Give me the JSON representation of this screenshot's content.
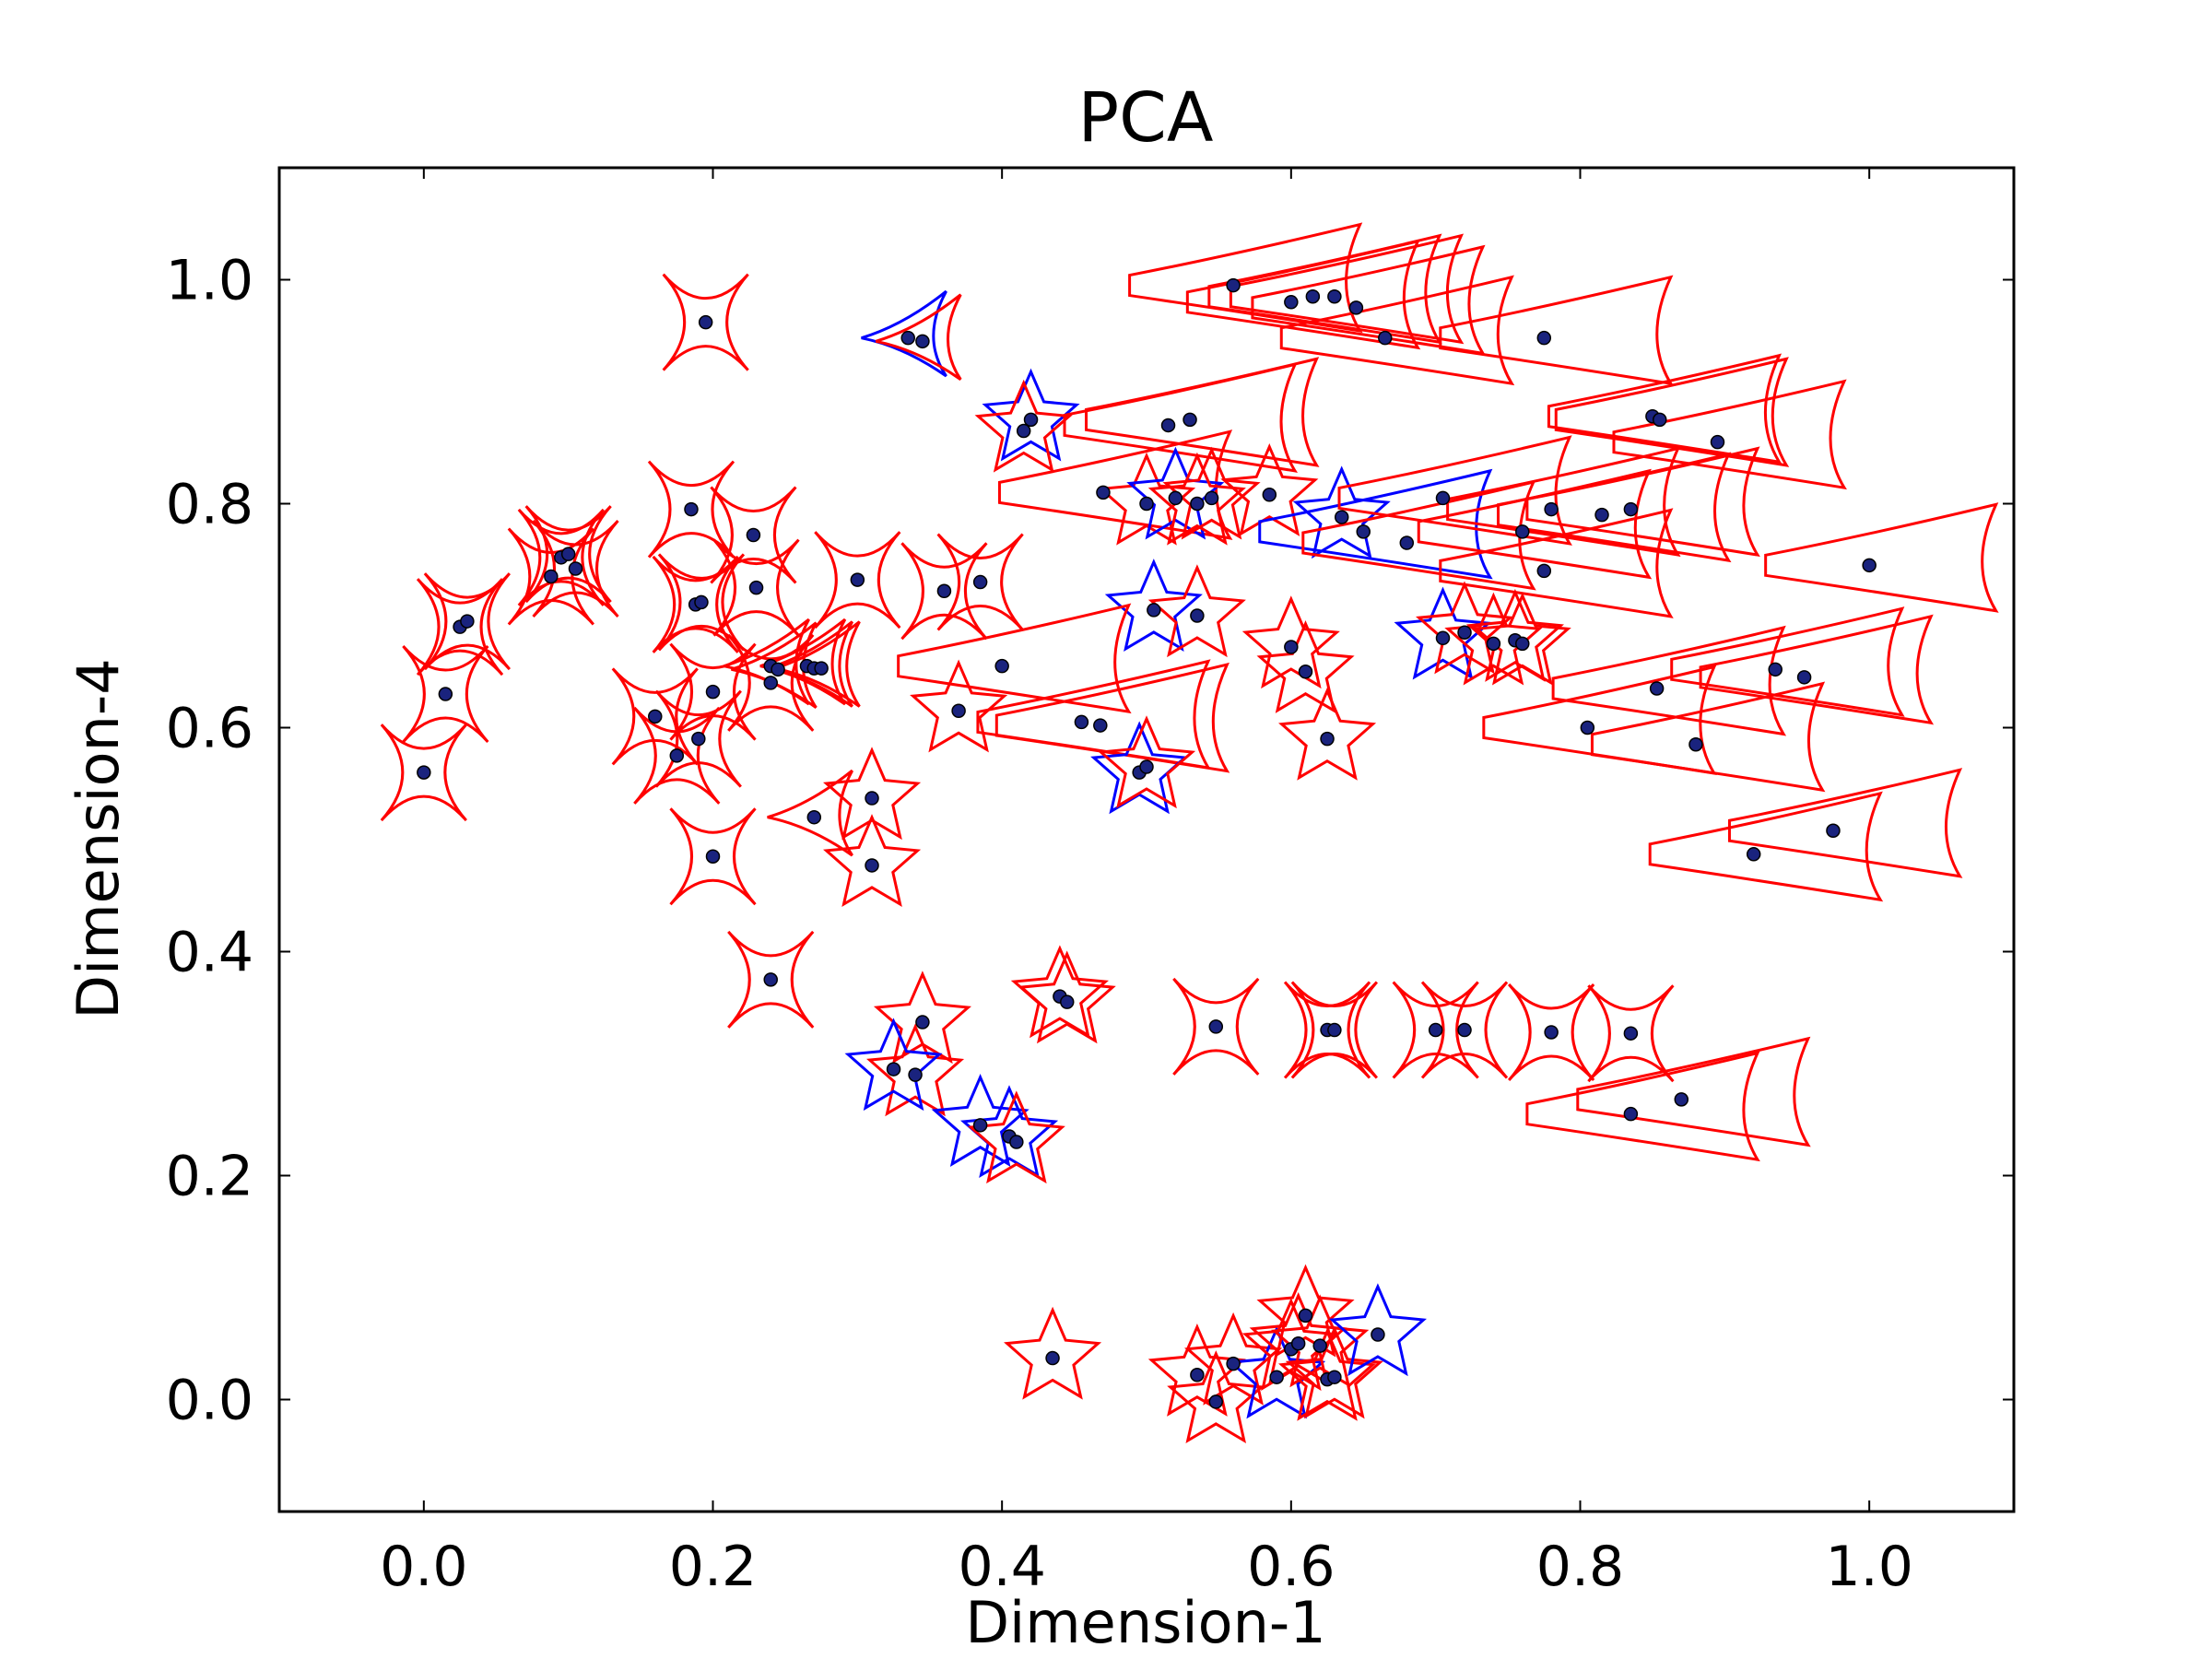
{
  "chart_data": {
    "type": "scatter",
    "title": "PCA",
    "xlabel": "Dimension-1",
    "ylabel": "Dimension-4",
    "xlim": [
      -0.1,
      1.1
    ],
    "ylim": [
      -0.1,
      1.1
    ],
    "xticks": [
      "0.0",
      "0.2",
      "0.4",
      "0.6",
      "0.8",
      "1.0"
    ],
    "yticks": [
      "0.0",
      "0.2",
      "0.4",
      "0.6",
      "0.8",
      "1.0"
    ],
    "grid": false,
    "legend": "none",
    "colors": {
      "point": "#1a237e",
      "glyph_red": "#ff0000",
      "glyph_blue": "#0000ff",
      "axis": "#000000"
    },
    "points": [
      {
        "x": 0.195,
        "y": 0.962,
        "shape": "astroid",
        "color": "red"
      },
      {
        "x": 0.335,
        "y": 0.948,
        "shape": "triangle",
        "color": "blue"
      },
      {
        "x": 0.345,
        "y": 0.945,
        "shape": "triangle",
        "color": "red"
      },
      {
        "x": 0.56,
        "y": 0.995,
        "shape": "wedge",
        "color": "red"
      },
      {
        "x": 0.6,
        "y": 0.98,
        "shape": "wedge",
        "color": "red"
      },
      {
        "x": 0.615,
        "y": 0.985,
        "shape": "wedge",
        "color": "red"
      },
      {
        "x": 0.63,
        "y": 0.985,
        "shape": "wedge",
        "color": "red"
      },
      {
        "x": 0.645,
        "y": 0.975,
        "shape": "wedge",
        "color": "red"
      },
      {
        "x": 0.665,
        "y": 0.948,
        "shape": "wedge",
        "color": "red"
      },
      {
        "x": 0.775,
        "y": 0.948,
        "shape": "wedge",
        "color": "red"
      },
      {
        "x": 0.85,
        "y": 0.878,
        "shape": "wedge",
        "color": "red"
      },
      {
        "x": 0.855,
        "y": 0.875,
        "shape": "wedge",
        "color": "red"
      },
      {
        "x": 0.895,
        "y": 0.855,
        "shape": "wedge",
        "color": "red"
      },
      {
        "x": 0.42,
        "y": 0.875,
        "shape": "star",
        "color": "blue"
      },
      {
        "x": 0.415,
        "y": 0.865,
        "shape": "star",
        "color": "red"
      },
      {
        "x": 0.515,
        "y": 0.87,
        "shape": "wedge",
        "color": "red"
      },
      {
        "x": 0.53,
        "y": 0.875,
        "shape": "wedge",
        "color": "red"
      },
      {
        "x": 0.185,
        "y": 0.795,
        "shape": "astroid",
        "color": "red"
      },
      {
        "x": 0.228,
        "y": 0.772,
        "shape": "astroid",
        "color": "red"
      },
      {
        "x": 0.095,
        "y": 0.752,
        "shape": "astroid",
        "color": "red"
      },
      {
        "x": 0.1,
        "y": 0.755,
        "shape": "astroid",
        "color": "red"
      },
      {
        "x": 0.105,
        "y": 0.742,
        "shape": "astroid",
        "color": "red"
      },
      {
        "x": 0.088,
        "y": 0.735,
        "shape": "astroid",
        "color": "red"
      },
      {
        "x": 0.23,
        "y": 0.725,
        "shape": "astroid",
        "color": "red"
      },
      {
        "x": 0.3,
        "y": 0.732,
        "shape": "astroid",
        "color": "red"
      },
      {
        "x": 0.36,
        "y": 0.722,
        "shape": "astroid",
        "color": "red"
      },
      {
        "x": 0.385,
        "y": 0.73,
        "shape": "astroid",
        "color": "red"
      },
      {
        "x": 0.188,
        "y": 0.71,
        "shape": "astroid",
        "color": "red"
      },
      {
        "x": 0.192,
        "y": 0.712,
        "shape": "astroid",
        "color": "red"
      },
      {
        "x": 0.025,
        "y": 0.69,
        "shape": "astroid",
        "color": "red"
      },
      {
        "x": 0.03,
        "y": 0.695,
        "shape": "astroid",
        "color": "red"
      },
      {
        "x": 0.015,
        "y": 0.63,
        "shape": "astroid",
        "color": "red"
      },
      {
        "x": 0.0,
        "y": 0.56,
        "shape": "astroid",
        "color": "red"
      },
      {
        "x": 0.47,
        "y": 0.81,
        "shape": "wedge",
        "color": "red"
      },
      {
        "x": 0.5,
        "y": 0.8,
        "shape": "star",
        "color": "red"
      },
      {
        "x": 0.52,
        "y": 0.805,
        "shape": "star",
        "color": "blue"
      },
      {
        "x": 0.535,
        "y": 0.8,
        "shape": "star",
        "color": "red"
      },
      {
        "x": 0.545,
        "y": 0.805,
        "shape": "star",
        "color": "red"
      },
      {
        "x": 0.585,
        "y": 0.808,
        "shape": "star",
        "color": "red"
      },
      {
        "x": 0.635,
        "y": 0.788,
        "shape": "star",
        "color": "blue"
      },
      {
        "x": 0.65,
        "y": 0.775,
        "shape": "wedge",
        "color": "blue"
      },
      {
        "x": 0.68,
        "y": 0.765,
        "shape": "wedge",
        "color": "red"
      },
      {
        "x": 0.705,
        "y": 0.805,
        "shape": "wedge",
        "color": "red"
      },
      {
        "x": 0.76,
        "y": 0.775,
        "shape": "wedge",
        "color": "red"
      },
      {
        "x": 0.78,
        "y": 0.795,
        "shape": "wedge",
        "color": "red"
      },
      {
        "x": 0.815,
        "y": 0.79,
        "shape": "wedge",
        "color": "red"
      },
      {
        "x": 0.835,
        "y": 0.795,
        "shape": "wedge",
        "color": "red"
      },
      {
        "x": 0.775,
        "y": 0.74,
        "shape": "wedge",
        "color": "red"
      },
      {
        "x": 1.0,
        "y": 0.745,
        "shape": "wedge",
        "color": "red"
      },
      {
        "x": 0.505,
        "y": 0.705,
        "shape": "star",
        "color": "blue"
      },
      {
        "x": 0.535,
        "y": 0.7,
        "shape": "star",
        "color": "red"
      },
      {
        "x": 0.6,
        "y": 0.672,
        "shape": "star",
        "color": "red"
      },
      {
        "x": 0.61,
        "y": 0.65,
        "shape": "star",
        "color": "red"
      },
      {
        "x": 0.625,
        "y": 0.59,
        "shape": "star",
        "color": "red"
      },
      {
        "x": 0.705,
        "y": 0.68,
        "shape": "star",
        "color": "blue"
      },
      {
        "x": 0.72,
        "y": 0.685,
        "shape": "star",
        "color": "red"
      },
      {
        "x": 0.74,
        "y": 0.675,
        "shape": "star",
        "color": "red"
      },
      {
        "x": 0.755,
        "y": 0.678,
        "shape": "star",
        "color": "red"
      },
      {
        "x": 0.76,
        "y": 0.675,
        "shape": "star",
        "color": "red"
      },
      {
        "x": 0.853,
        "y": 0.635,
        "shape": "wedge",
        "color": "red"
      },
      {
        "x": 0.935,
        "y": 0.652,
        "shape": "wedge",
        "color": "red"
      },
      {
        "x": 0.955,
        "y": 0.645,
        "shape": "wedge",
        "color": "red"
      },
      {
        "x": 0.805,
        "y": 0.6,
        "shape": "wedge",
        "color": "red"
      },
      {
        "x": 0.88,
        "y": 0.585,
        "shape": "wedge",
        "color": "red"
      },
      {
        "x": 0.975,
        "y": 0.508,
        "shape": "wedge",
        "color": "red"
      },
      {
        "x": 0.92,
        "y": 0.487,
        "shape": "wedge",
        "color": "red"
      },
      {
        "x": 0.24,
        "y": 0.655,
        "shape": "triangle",
        "color": "red"
      },
      {
        "x": 0.245,
        "y": 0.652,
        "shape": "triangle",
        "color": "red"
      },
      {
        "x": 0.265,
        "y": 0.655,
        "shape": "triangle",
        "color": "red"
      },
      {
        "x": 0.27,
        "y": 0.653,
        "shape": "triangle",
        "color": "red"
      },
      {
        "x": 0.275,
        "y": 0.653,
        "shape": "triangle",
        "color": "red"
      },
      {
        "x": 0.24,
        "y": 0.64,
        "shape": "astroid",
        "color": "red"
      },
      {
        "x": 0.2,
        "y": 0.632,
        "shape": "astroid",
        "color": "red"
      },
      {
        "x": 0.16,
        "y": 0.61,
        "shape": "astroid",
        "color": "red"
      },
      {
        "x": 0.19,
        "y": 0.59,
        "shape": "astroid",
        "color": "red"
      },
      {
        "x": 0.175,
        "y": 0.575,
        "shape": "astroid",
        "color": "red"
      },
      {
        "x": 0.37,
        "y": 0.615,
        "shape": "star",
        "color": "red"
      },
      {
        "x": 0.4,
        "y": 0.655,
        "shape": "wedge",
        "color": "red"
      },
      {
        "x": 0.455,
        "y": 0.605,
        "shape": "wedge",
        "color": "red"
      },
      {
        "x": 0.468,
        "y": 0.602,
        "shape": "wedge",
        "color": "red"
      },
      {
        "x": 0.495,
        "y": 0.56,
        "shape": "star",
        "color": "blue"
      },
      {
        "x": 0.5,
        "y": 0.565,
        "shape": "star",
        "color": "red"
      },
      {
        "x": 0.27,
        "y": 0.52,
        "shape": "triangle",
        "color": "red"
      },
      {
        "x": 0.31,
        "y": 0.537,
        "shape": "star",
        "color": "red"
      },
      {
        "x": 0.31,
        "y": 0.477,
        "shape": "star",
        "color": "red"
      },
      {
        "x": 0.2,
        "y": 0.485,
        "shape": "astroid",
        "color": "red"
      },
      {
        "x": 0.24,
        "y": 0.375,
        "shape": "astroid",
        "color": "red"
      },
      {
        "x": 0.345,
        "y": 0.337,
        "shape": "star",
        "color": "red"
      },
      {
        "x": 0.34,
        "y": 0.29,
        "shape": "star",
        "color": "red"
      },
      {
        "x": 0.325,
        "y": 0.295,
        "shape": "star",
        "color": "blue"
      },
      {
        "x": 0.44,
        "y": 0.36,
        "shape": "star",
        "color": "red"
      },
      {
        "x": 0.445,
        "y": 0.355,
        "shape": "star",
        "color": "red"
      },
      {
        "x": 0.385,
        "y": 0.245,
        "shape": "star",
        "color": "blue"
      },
      {
        "x": 0.405,
        "y": 0.235,
        "shape": "star",
        "color": "blue"
      },
      {
        "x": 0.41,
        "y": 0.23,
        "shape": "star",
        "color": "red"
      },
      {
        "x": 0.548,
        "y": 0.333,
        "shape": "astroid",
        "color": "red"
      },
      {
        "x": 0.625,
        "y": 0.33,
        "shape": "astroid",
        "color": "red"
      },
      {
        "x": 0.63,
        "y": 0.33,
        "shape": "astroid",
        "color": "red"
      },
      {
        "x": 0.7,
        "y": 0.33,
        "shape": "astroid",
        "color": "red"
      },
      {
        "x": 0.72,
        "y": 0.33,
        "shape": "astroid",
        "color": "red"
      },
      {
        "x": 0.78,
        "y": 0.328,
        "shape": "astroid",
        "color": "red"
      },
      {
        "x": 0.835,
        "y": 0.327,
        "shape": "astroid",
        "color": "red"
      },
      {
        "x": 0.835,
        "y": 0.255,
        "shape": "wedge",
        "color": "red"
      },
      {
        "x": 0.87,
        "y": 0.268,
        "shape": "wedge",
        "color": "red"
      },
      {
        "x": 0.435,
        "y": 0.037,
        "shape": "star",
        "color": "red"
      },
      {
        "x": 0.535,
        "y": 0.022,
        "shape": "star",
        "color": "red"
      },
      {
        "x": 0.548,
        "y": -0.002,
        "shape": "star",
        "color": "red"
      },
      {
        "x": 0.56,
        "y": 0.032,
        "shape": "star",
        "color": "red"
      },
      {
        "x": 0.59,
        "y": 0.02,
        "shape": "star",
        "color": "blue"
      },
      {
        "x": 0.6,
        "y": 0.045,
        "shape": "star",
        "color": "red"
      },
      {
        "x": 0.605,
        "y": 0.05,
        "shape": "star",
        "color": "red"
      },
      {
        "x": 0.61,
        "y": 0.075,
        "shape": "star",
        "color": "red"
      },
      {
        "x": 0.62,
        "y": 0.048,
        "shape": "star",
        "color": "red"
      },
      {
        "x": 0.625,
        "y": 0.018,
        "shape": "star",
        "color": "red"
      },
      {
        "x": 0.63,
        "y": 0.02,
        "shape": "star",
        "color": "red"
      },
      {
        "x": 0.66,
        "y": 0.058,
        "shape": "star",
        "color": "blue"
      }
    ]
  }
}
